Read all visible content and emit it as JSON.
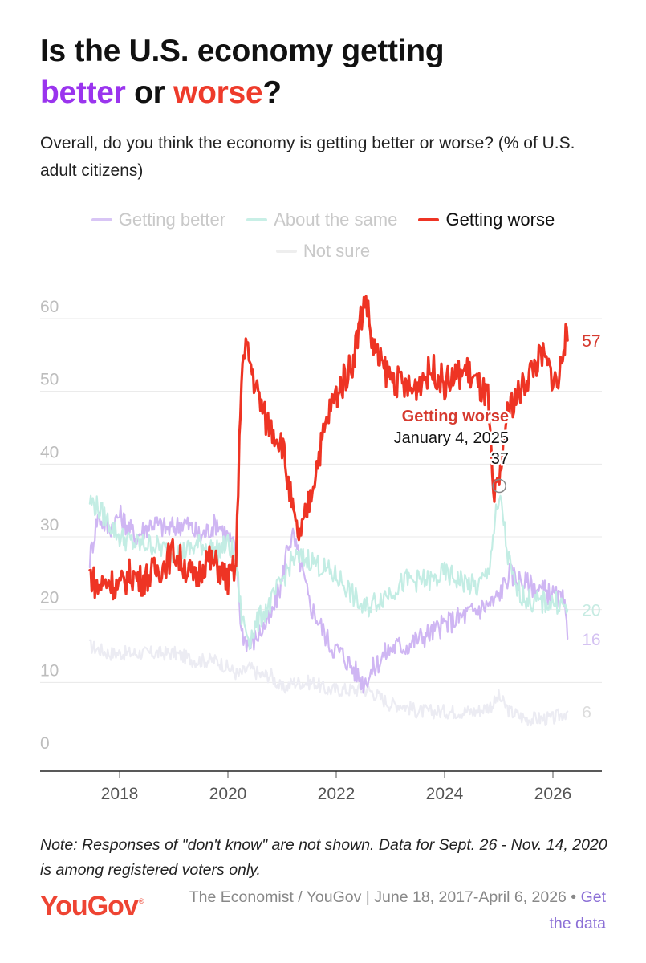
{
  "title": {
    "line1": "Is the U.S. economy getting",
    "better": "better",
    "or": " or ",
    "worse": "worse",
    "qmark": "?"
  },
  "subtitle": "Overall, do you think the economy is getting better or worse? (% of U.S. adult citizens)",
  "colors": {
    "better": "#cfb6f3",
    "same": "#c3ede4",
    "worse": "#ee3424",
    "notsure": "#ececf3",
    "accent_purple": "#9a34ee",
    "accent_red": "#ee3b2b"
  },
  "legend": [
    {
      "label": "Getting better",
      "color": "#d8c5f5",
      "active": false
    },
    {
      "label": "About the same",
      "color": "#c8efe6",
      "active": false
    },
    {
      "label": "Getting worse",
      "color": "#ee3424",
      "active": true
    },
    {
      "label": "Not sure",
      "color": "#eeeeee",
      "active": false
    }
  ],
  "chart_data": {
    "type": "line",
    "title": "Is the U.S. economy getting better or worse?",
    "x_ticks": [
      "2018",
      "2020",
      "2022",
      "2024",
      "2026"
    ],
    "y_ticks": [
      "0",
      "10",
      "20",
      "30",
      "40",
      "50",
      "60"
    ],
    "ylim": [
      0,
      65
    ],
    "xlim": [
      "2017-06",
      "2026-05"
    ],
    "series": [
      {
        "name": "Getting better",
        "color": "#cfb6f3",
        "end_label": "16",
        "points": [
          [
            2017.45,
            27
          ],
          [
            2017.6,
            33
          ],
          [
            2017.8,
            31
          ],
          [
            2018.0,
            33
          ],
          [
            2018.3,
            30
          ],
          [
            2018.6,
            32
          ],
          [
            2018.9,
            31
          ],
          [
            2019.2,
            32
          ],
          [
            2019.5,
            30
          ],
          [
            2019.8,
            32
          ],
          [
            2020.0,
            30
          ],
          [
            2020.15,
            28
          ],
          [
            2020.25,
            17
          ],
          [
            2020.4,
            15
          ],
          [
            2020.6,
            17
          ],
          [
            2020.8,
            19
          ],
          [
            2021.0,
            24
          ],
          [
            2021.1,
            29
          ],
          [
            2021.2,
            30
          ],
          [
            2021.35,
            26
          ],
          [
            2021.5,
            21
          ],
          [
            2021.7,
            18
          ],
          [
            2021.9,
            15
          ],
          [
            2022.1,
            14
          ],
          [
            2022.3,
            12
          ],
          [
            2022.5,
            10
          ],
          [
            2022.7,
            12
          ],
          [
            2022.9,
            14
          ],
          [
            2023.1,
            15
          ],
          [
            2023.3,
            15
          ],
          [
            2023.5,
            16
          ],
          [
            2023.8,
            17
          ],
          [
            2024.0,
            18
          ],
          [
            2024.3,
            19
          ],
          [
            2024.6,
            20
          ],
          [
            2024.9,
            21
          ],
          [
            2025.0,
            22
          ],
          [
            2025.2,
            25
          ],
          [
            2025.4,
            24
          ],
          [
            2025.7,
            23
          ],
          [
            2026.0,
            22
          ],
          [
            2026.2,
            21
          ],
          [
            2026.27,
            16
          ]
        ]
      },
      {
        "name": "About the same",
        "color": "#c3ede4",
        "end_label": "20",
        "points": [
          [
            2017.45,
            35
          ],
          [
            2017.6,
            34
          ],
          [
            2017.8,
            32
          ],
          [
            2018.0,
            30
          ],
          [
            2018.3,
            29
          ],
          [
            2018.6,
            29
          ],
          [
            2018.9,
            28
          ],
          [
            2019.2,
            28
          ],
          [
            2019.5,
            29
          ],
          [
            2019.8,
            28
          ],
          [
            2020.0,
            29
          ],
          [
            2020.15,
            27
          ],
          [
            2020.25,
            19
          ],
          [
            2020.4,
            16
          ],
          [
            2020.6,
            19
          ],
          [
            2020.8,
            21
          ],
          [
            2021.0,
            24
          ],
          [
            2021.2,
            27
          ],
          [
            2021.35,
            27
          ],
          [
            2021.5,
            27
          ],
          [
            2021.7,
            26
          ],
          [
            2021.9,
            25
          ],
          [
            2022.1,
            24
          ],
          [
            2022.3,
            22
          ],
          [
            2022.5,
            20
          ],
          [
            2022.7,
            21
          ],
          [
            2022.9,
            22
          ],
          [
            2023.1,
            23
          ],
          [
            2023.3,
            24
          ],
          [
            2023.5,
            24
          ],
          [
            2023.8,
            24
          ],
          [
            2024.0,
            25
          ],
          [
            2024.3,
            24
          ],
          [
            2024.6,
            23
          ],
          [
            2024.8,
            25
          ],
          [
            2024.95,
            33
          ],
          [
            2025.05,
            35
          ],
          [
            2025.15,
            28
          ],
          [
            2025.3,
            23
          ],
          [
            2025.6,
            21
          ],
          [
            2025.9,
            21
          ],
          [
            2026.1,
            21
          ],
          [
            2026.27,
            20
          ]
        ]
      },
      {
        "name": "Getting worse",
        "color": "#ee3424",
        "end_label": "57",
        "points": [
          [
            2017.45,
            25
          ],
          [
            2017.6,
            23
          ],
          [
            2017.8,
            24
          ],
          [
            2018.0,
            23
          ],
          [
            2018.2,
            25
          ],
          [
            2018.4,
            24
          ],
          [
            2018.6,
            25
          ],
          [
            2018.8,
            26
          ],
          [
            2019.0,
            28
          ],
          [
            2019.2,
            26
          ],
          [
            2019.4,
            24
          ],
          [
            2019.6,
            27
          ],
          [
            2019.8,
            26
          ],
          [
            2020.0,
            24
          ],
          [
            2020.15,
            26
          ],
          [
            2020.25,
            53
          ],
          [
            2020.35,
            56
          ],
          [
            2020.5,
            51
          ],
          [
            2020.7,
            46
          ],
          [
            2020.9,
            44
          ],
          [
            2021.0,
            43
          ],
          [
            2021.1,
            38
          ],
          [
            2021.25,
            31
          ],
          [
            2021.35,
            30
          ],
          [
            2021.5,
            35
          ],
          [
            2021.7,
            42
          ],
          [
            2021.9,
            48
          ],
          [
            2022.1,
            51
          ],
          [
            2022.3,
            54
          ],
          [
            2022.45,
            60
          ],
          [
            2022.55,
            63
          ],
          [
            2022.65,
            57
          ],
          [
            2022.8,
            54
          ],
          [
            2023.0,
            52
          ],
          [
            2023.2,
            51
          ],
          [
            2023.4,
            50
          ],
          [
            2023.6,
            52
          ],
          [
            2023.8,
            53
          ],
          [
            2024.0,
            51
          ],
          [
            2024.2,
            52
          ],
          [
            2024.4,
            53
          ],
          [
            2024.6,
            51
          ],
          [
            2024.8,
            49
          ],
          [
            2024.9,
            35
          ],
          [
            2025.01,
            37
          ],
          [
            2025.1,
            44
          ],
          [
            2025.2,
            48
          ],
          [
            2025.4,
            50
          ],
          [
            2025.6,
            53
          ],
          [
            2025.8,
            55
          ],
          [
            2026.0,
            52
          ],
          [
            2026.1,
            51
          ],
          [
            2026.2,
            57
          ],
          [
            2026.27,
            57
          ]
        ]
      },
      {
        "name": "Not sure",
        "color": "#ececf3",
        "end_label": "6",
        "points": [
          [
            2017.45,
            15
          ],
          [
            2017.8,
            14
          ],
          [
            2018.2,
            14
          ],
          [
            2018.6,
            14
          ],
          [
            2019.0,
            14
          ],
          [
            2019.4,
            13
          ],
          [
            2019.8,
            13
          ],
          [
            2020.0,
            12
          ],
          [
            2020.2,
            11
          ],
          [
            2020.4,
            12
          ],
          [
            2020.6,
            11
          ],
          [
            2020.8,
            11
          ],
          [
            2021.0,
            9
          ],
          [
            2021.2,
            10
          ],
          [
            2021.4,
            10
          ],
          [
            2021.6,
            10
          ],
          [
            2021.8,
            9
          ],
          [
            2022.0,
            9
          ],
          [
            2022.2,
            9
          ],
          [
            2022.4,
            9
          ],
          [
            2022.6,
            9
          ],
          [
            2022.8,
            8
          ],
          [
            2023.0,
            7
          ],
          [
            2023.2,
            7
          ],
          [
            2023.5,
            6
          ],
          [
            2023.8,
            6
          ],
          [
            2024.0,
            6
          ],
          [
            2024.3,
            6
          ],
          [
            2024.6,
            6
          ],
          [
            2024.9,
            7
          ],
          [
            2025.0,
            8
          ],
          [
            2025.2,
            6
          ],
          [
            2025.5,
            5
          ],
          [
            2025.8,
            5
          ],
          [
            2026.0,
            5
          ],
          [
            2026.27,
            6
          ]
        ]
      }
    ],
    "annotation": {
      "series": "Getting worse",
      "label": "Getting worse",
      "date": "January 4, 2025",
      "value": "37",
      "x": 2025.01,
      "y": 37
    },
    "legend_position": "top",
    "grid": true
  },
  "note": "Note: Responses of \"don't know\" are not shown. Data for Sept. 26 - Nov. 14, 2020 is among registered voters only.",
  "brand": {
    "logo": "YouGov",
    "registered": "®"
  },
  "source": {
    "text": "The Economist / YouGov | June 18, 2017-April 6, 2026",
    "separator": " • ",
    "link": "Get the data"
  }
}
